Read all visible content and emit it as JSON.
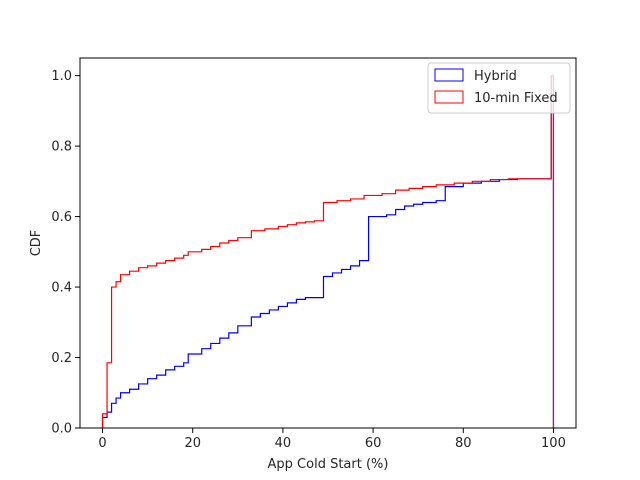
{
  "chart_data": {
    "type": "step",
    "xlabel": "App Cold Start (%)",
    "ylabel": "CDF",
    "xlim": [
      -5,
      105
    ],
    "ylim": [
      0,
      1.05
    ],
    "xticks": [
      0,
      20,
      40,
      60,
      80,
      100
    ],
    "yticks": [
      0.0,
      0.2,
      0.4,
      0.6,
      0.8,
      1.0
    ],
    "xtick_labels": [
      "0",
      "20",
      "40",
      "60",
      "80",
      "100"
    ],
    "ytick_labels": [
      "0.0",
      "0.2",
      "0.4",
      "0.6",
      "0.8",
      "1.0"
    ],
    "grid": false,
    "legend_position": "top-right",
    "legend": [
      "Hybrid",
      "10-min Fixed"
    ],
    "series": [
      {
        "name": "Hybrid",
        "color": "#0000ff",
        "points": [
          [
            0,
            0.0
          ],
          [
            0,
            0.03
          ],
          [
            1,
            0.045
          ],
          [
            2,
            0.07
          ],
          [
            3,
            0.085
          ],
          [
            4,
            0.1
          ],
          [
            6,
            0.11
          ],
          [
            8,
            0.125
          ],
          [
            10,
            0.14
          ],
          [
            12,
            0.15
          ],
          [
            14,
            0.165
          ],
          [
            16,
            0.175
          ],
          [
            18,
            0.185
          ],
          [
            19,
            0.21
          ],
          [
            22,
            0.225
          ],
          [
            24,
            0.24
          ],
          [
            26,
            0.255
          ],
          [
            28,
            0.27
          ],
          [
            30,
            0.29
          ],
          [
            33,
            0.315
          ],
          [
            35,
            0.325
          ],
          [
            37,
            0.335
          ],
          [
            39,
            0.345
          ],
          [
            41,
            0.355
          ],
          [
            43,
            0.365
          ],
          [
            45,
            0.37
          ],
          [
            49,
            0.43
          ],
          [
            51,
            0.44
          ],
          [
            53,
            0.45
          ],
          [
            55,
            0.46
          ],
          [
            57,
            0.475
          ],
          [
            59,
            0.6
          ],
          [
            63,
            0.605
          ],
          [
            65,
            0.62
          ],
          [
            67,
            0.63
          ],
          [
            69,
            0.635
          ],
          [
            71,
            0.64
          ],
          [
            74,
            0.645
          ],
          [
            76,
            0.685
          ],
          [
            80,
            0.695
          ],
          [
            84,
            0.7
          ],
          [
            88,
            0.705
          ],
          [
            92,
            0.707
          ],
          [
            99.5,
            1.0
          ],
          [
            100,
            0.0
          ]
        ]
      },
      {
        "name": "10-min Fixed",
        "color": "#ff0000",
        "points": [
          [
            0,
            0.0
          ],
          [
            0,
            0.04
          ],
          [
            1,
            0.185
          ],
          [
            2,
            0.4
          ],
          [
            3,
            0.415
          ],
          [
            4,
            0.435
          ],
          [
            6,
            0.445
          ],
          [
            8,
            0.455
          ],
          [
            10,
            0.46
          ],
          [
            12,
            0.468
          ],
          [
            14,
            0.475
          ],
          [
            16,
            0.482
          ],
          [
            18,
            0.49
          ],
          [
            19,
            0.5
          ],
          [
            22,
            0.507
          ],
          [
            24,
            0.515
          ],
          [
            26,
            0.525
          ],
          [
            28,
            0.532
          ],
          [
            30,
            0.54
          ],
          [
            33,
            0.56
          ],
          [
            36,
            0.565
          ],
          [
            39,
            0.572
          ],
          [
            41,
            0.577
          ],
          [
            43,
            0.582
          ],
          [
            45,
            0.585
          ],
          [
            47,
            0.588
          ],
          [
            49,
            0.64
          ],
          [
            52,
            0.645
          ],
          [
            55,
            0.65
          ],
          [
            58,
            0.66
          ],
          [
            62,
            0.665
          ],
          [
            65,
            0.675
          ],
          [
            68,
            0.68
          ],
          [
            71,
            0.685
          ],
          [
            74,
            0.69
          ],
          [
            78,
            0.695
          ],
          [
            82,
            0.7
          ],
          [
            86,
            0.705
          ],
          [
            90,
            0.707
          ],
          [
            99.5,
            1.0
          ],
          [
            100,
            0.0
          ]
        ]
      }
    ]
  }
}
